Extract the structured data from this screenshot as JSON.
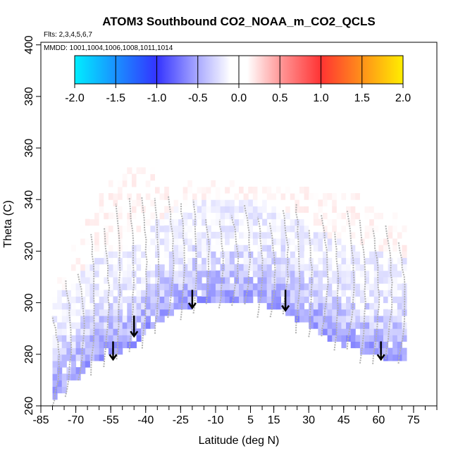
{
  "chart_data": {
    "type": "heatmap",
    "title": "ATOM3 Southbound CO2_NOAA_m_CO2_QCLS",
    "subtitle_flights": "Flts: 2,3,4,5,6,7",
    "subtitle_dates": "MMDD: 1001,1004,1006,1008,1011,1014",
    "xlabel": "Latitude (deg N)",
    "ylabel": "Theta (C)",
    "xlim": [
      -85,
      85
    ],
    "ylim": [
      260,
      401
    ],
    "x_ticks": [
      -85,
      -70,
      -55,
      -40,
      -25,
      -10,
      5,
      15,
      30,
      45,
      60,
      75
    ],
    "x_tick_labels": [
      "-85",
      "-70",
      "-55",
      "-40",
      "-25",
      "-10",
      "5",
      "15",
      "30",
      "45",
      "60",
      "75"
    ],
    "x_minor_ticks": [
      -85,
      -80,
      -75,
      -70,
      -65,
      -60,
      -55,
      -50,
      -45,
      -40,
      -35,
      -30,
      -25,
      -20,
      -15,
      -10,
      -5,
      0,
      5,
      10,
      15,
      20,
      25,
      30,
      35,
      40,
      45,
      50,
      55,
      60,
      65,
      70,
      75,
      80,
      85
    ],
    "y_ticks": [
      260,
      280,
      300,
      320,
      340,
      360,
      380,
      400
    ],
    "y_tick_labels": [
      "260",
      "280",
      "300",
      "320",
      "340",
      "360",
      "380",
      "400"
    ],
    "colorbar": {
      "range": [
        -2.0,
        2.0
      ],
      "tick_values": [
        -2.0,
        -1.5,
        -1.0,
        -0.5,
        0.0,
        0.5,
        1.0,
        1.5,
        2.0
      ],
      "tick_labels": [
        "-2.0",
        "-1.5",
        "-1.0",
        "-0.5",
        "0.0",
        "0.5",
        "1.0",
        "1.5",
        "2.0"
      ],
      "color_stops": [
        {
          "v": -2.0,
          "c": "#00eeff"
        },
        {
          "v": -1.0,
          "c": "#3333ff"
        },
        {
          "v": -0.5,
          "c": "#aaaaff"
        },
        {
          "v": -0.1,
          "c": "#ffffff"
        },
        {
          "v": 0.1,
          "c": "#ffffff"
        },
        {
          "v": 0.5,
          "c": "#ff9999"
        },
        {
          "v": 1.0,
          "c": "#ff3333"
        },
        {
          "v": 2.0,
          "c": "#ffee00"
        }
      ]
    },
    "tropopause_theta_by_lat": [
      [
        -80,
        262
      ],
      [
        -72,
        268
      ],
      [
        -66,
        274
      ],
      [
        -60,
        278
      ],
      [
        -54,
        280
      ],
      [
        -48,
        282
      ],
      [
        -44,
        284
      ],
      [
        -38,
        290
      ],
      [
        -32,
        294
      ],
      [
        -26,
        297
      ],
      [
        -20,
        299
      ],
      [
        -14,
        300
      ],
      [
        -8,
        300.5
      ],
      [
        -2,
        300.5
      ],
      [
        4,
        300
      ],
      [
        12,
        299
      ],
      [
        20,
        296
      ],
      [
        28,
        292
      ],
      [
        34,
        288
      ],
      [
        40,
        285
      ],
      [
        46,
        283
      ],
      [
        52,
        281
      ],
      [
        60,
        279
      ],
      [
        66,
        278
      ],
      [
        72,
        277
      ]
    ],
    "top_boundary_by_lat": [
      [
        -80,
        305
      ],
      [
        -74,
        318
      ],
      [
        -68,
        328
      ],
      [
        -62,
        337
      ],
      [
        -55,
        347
      ],
      [
        -47,
        352
      ],
      [
        -40,
        352
      ],
      [
        -30,
        351
      ],
      [
        -20,
        348
      ],
      [
        -10,
        347
      ],
      [
        0,
        346
      ],
      [
        10,
        346
      ],
      [
        20,
        345
      ],
      [
        30,
        344
      ],
      [
        40,
        343
      ],
      [
        50,
        342
      ],
      [
        60,
        340
      ],
      [
        66,
        337
      ],
      [
        72,
        330
      ]
    ],
    "anomaly_field_description": "mostly weak negative (blue) near tropopause, near-zero/positive (pink) aloft",
    "arrows": [
      {
        "lat": -54,
        "theta": 285,
        "theta_tip": 278
      },
      {
        "lat": -45,
        "theta": 295,
        "theta_tip": 287
      },
      {
        "lat": -20,
        "theta": 305,
        "theta_tip": 298
      },
      {
        "lat": 20,
        "theta": 305,
        "theta_tip": 297
      },
      {
        "lat": 61,
        "theta": 285,
        "theta_tip": 278
      }
    ]
  }
}
